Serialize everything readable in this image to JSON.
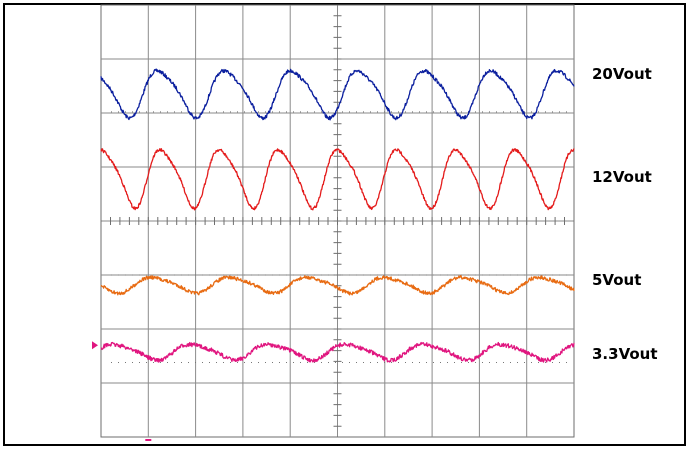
{
  "chart_data": {
    "type": "line",
    "title": "",
    "xlabel": "",
    "ylabel": "",
    "grid": true,
    "grid_divisions": {
      "x": 10,
      "y": 8
    },
    "x_unit": "div",
    "xlim": [
      0,
      10
    ],
    "series": [
      {
        "name": "20Vout",
        "color": "#0b1f9e",
        "ripple_cycles": 7.1,
        "phase_div": 0.35,
        "amplitude_div": 0.42,
        "noise_div": 0.03,
        "center_div": 1.62,
        "reference_div": 1.98
      },
      {
        "name": "12Vout",
        "color": "#e41b1b",
        "ripple_cycles": 8.0,
        "phase_div": 0.2,
        "amplitude_div": 0.52,
        "noise_div": 0.025,
        "center_div": 3.18,
        "reference_div": null
      },
      {
        "name": "5Vout",
        "color": "#e86b12",
        "ripple_cycles": 6.1,
        "phase_div": 0.55,
        "amplitude_div": 0.14,
        "noise_div": 0.03,
        "center_div": 5.18,
        "reference_div": 5.0
      },
      {
        "name": "3.3Vout",
        "color": "#e0157f",
        "ripple_cycles": 6.1,
        "phase_div": 0.05,
        "amplitude_div": 0.14,
        "noise_div": 0.035,
        "center_div": 6.42,
        "reference_div": 6.62
      }
    ]
  }
}
